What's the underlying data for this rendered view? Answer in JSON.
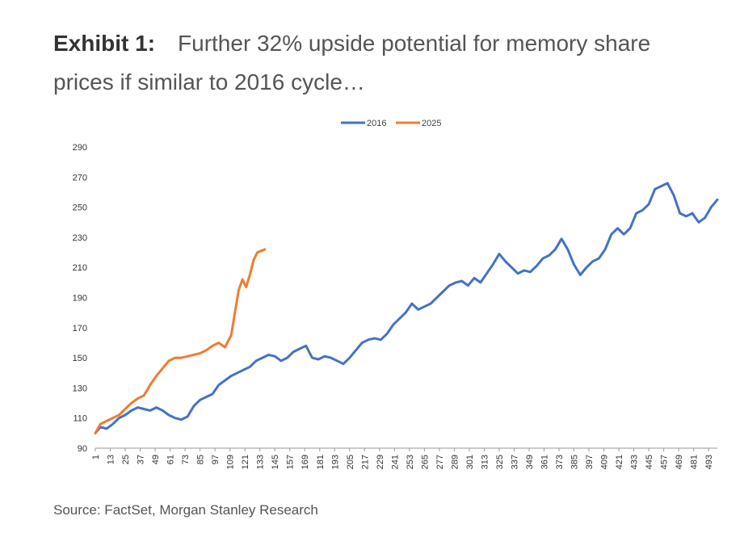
{
  "header": {
    "label": "Exhibit 1:",
    "title": "Further 32% upside potential for memory share prices if similar to 2016 cycle…"
  },
  "source": "Source: FactSet, Morgan Stanley Research",
  "colors": {
    "series_2016": "#4472C4",
    "series_2025": "#ED7D31",
    "axis": "#999999"
  },
  "chart_data": {
    "type": "line",
    "title": "",
    "xlabel": "",
    "ylabel": "",
    "xlim": [
      1,
      500
    ],
    "ylim": [
      90,
      290
    ],
    "y_ticks": [
      90,
      110,
      130,
      150,
      170,
      190,
      210,
      230,
      250,
      270,
      290
    ],
    "x_ticks": [
      1,
      13,
      25,
      37,
      49,
      61,
      73,
      85,
      97,
      109,
      121,
      133,
      145,
      157,
      169,
      181,
      193,
      205,
      217,
      229,
      241,
      253,
      265,
      277,
      289,
      301,
      313,
      325,
      337,
      349,
      361,
      373,
      385,
      397,
      409,
      421,
      433,
      445,
      457,
      469,
      481,
      493
    ],
    "grid": false,
    "legend_position": "top",
    "series": [
      {
        "name": "2016",
        "color": "#4472C4",
        "x": [
          1,
          5,
          10,
          15,
          20,
          25,
          30,
          35,
          40,
          45,
          50,
          55,
          60,
          65,
          70,
          75,
          80,
          85,
          90,
          95,
          100,
          105,
          110,
          115,
          120,
          125,
          130,
          135,
          140,
          145,
          150,
          155,
          160,
          165,
          170,
          175,
          180,
          185,
          190,
          195,
          200,
          205,
          210,
          215,
          220,
          225,
          230,
          235,
          240,
          245,
          250,
          255,
          260,
          265,
          270,
          275,
          280,
          285,
          290,
          295,
          300,
          305,
          310,
          315,
          320,
          325,
          330,
          335,
          340,
          345,
          350,
          355,
          360,
          365,
          370,
          375,
          380,
          385,
          390,
          395,
          400,
          405,
          410,
          415,
          420,
          425,
          430,
          435,
          440,
          445,
          450,
          455,
          460,
          465,
          470,
          475,
          480,
          485,
          490,
          495,
          500
        ],
        "values": [
          100,
          104,
          103,
          106,
          110,
          112,
          115,
          117,
          116,
          115,
          117,
          115,
          112,
          110,
          109,
          111,
          118,
          122,
          124,
          126,
          132,
          135,
          138,
          140,
          142,
          144,
          148,
          150,
          152,
          151,
          148,
          150,
          154,
          156,
          158,
          150,
          149,
          151,
          150,
          148,
          146,
          150,
          155,
          160,
          162,
          163,
          162,
          166,
          172,
          176,
          180,
          186,
          182,
          184,
          186,
          190,
          194,
          198,
          200,
          201,
          198,
          203,
          200,
          206,
          212,
          219,
          214,
          210,
          206,
          208,
          207,
          211,
          216,
          218,
          222,
          229,
          222,
          212,
          205,
          210,
          214,
          216,
          222,
          232,
          236,
          232,
          236,
          246,
          248,
          252,
          262,
          264,
          266,
          258,
          246,
          244,
          246,
          240,
          243,
          250,
          255
        ]
      },
      {
        "name": "2025",
        "color": "#ED7D31",
        "x": [
          1,
          5,
          10,
          15,
          20,
          25,
          30,
          35,
          40,
          45,
          50,
          55,
          60,
          65,
          70,
          75,
          80,
          85,
          90,
          95,
          100,
          105,
          110,
          113,
          116,
          119,
          122,
          125,
          128,
          131,
          134,
          137
        ],
        "values": [
          100,
          106,
          108,
          110,
          112,
          116,
          120,
          123,
          125,
          132,
          138,
          143,
          148,
          150,
          150,
          151,
          152,
          153,
          155,
          158,
          160,
          157,
          165,
          180,
          195,
          202,
          197,
          205,
          215,
          220,
          221,
          222
        ]
      }
    ]
  }
}
